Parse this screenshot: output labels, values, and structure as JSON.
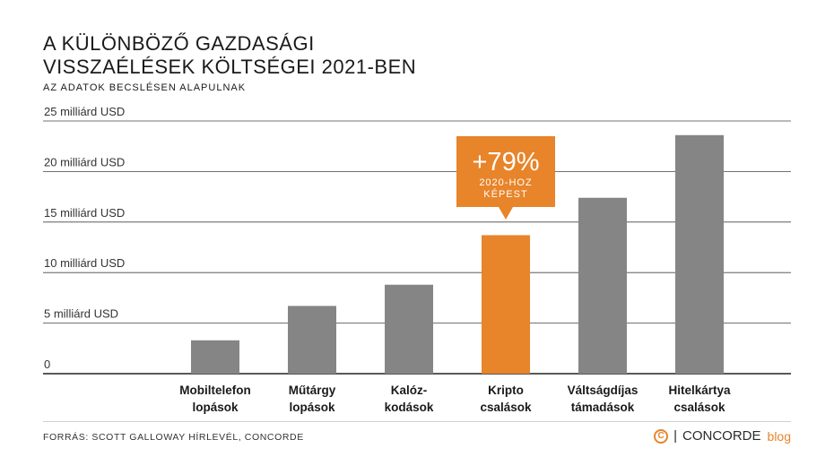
{
  "title_lines": [
    "A KÜLÖNBÖZŐ GAZDASÁGI",
    "VISSZAÉLÉSEK KÖLTSÉGEI 2021-BEN"
  ],
  "subtitle": "AZ ADATOK BECSLÉSEN ALAPULNAK",
  "source": "FORRÁS: SCOTT GALLOWAY HÍRLEVÉL, CONCORDE",
  "logo": {
    "name": "CONCORDE",
    "suffix": "blog",
    "mark": "C"
  },
  "colors": {
    "bar": "#858585",
    "highlight": "#e8842a",
    "grid": "#222222",
    "text": "#1a1a1a"
  },
  "chart_data": {
    "type": "bar",
    "title": "A KÜLÖNBÖZŐ GAZDASÁGI VISSZAÉLÉSEK KÖLTSÉGEI 2021-BEN",
    "subtitle": "AZ ADATOK BECSLÉSEN ALAPULNAK",
    "categories": [
      [
        "Mobiltelefon",
        "lopások"
      ],
      [
        "Műtárgy",
        "lopások"
      ],
      [
        "Kalóz-",
        "kodások"
      ],
      [
        "Kripto",
        "csalások"
      ],
      [
        "Váltságdíjas",
        "támadások"
      ],
      [
        "Hitelkártya",
        "csalások"
      ]
    ],
    "values": [
      3.3,
      6.7,
      8.8,
      13.7,
      17.4,
      23.6
    ],
    "unit": "milliárd USD",
    "highlight_index": 3,
    "ylim": [
      0,
      25
    ],
    "yticks": [
      {
        "value": 0,
        "label": "0"
      },
      {
        "value": 5,
        "label": "5 milliárd USD"
      },
      {
        "value": 10,
        "label": "10 milliárd USD"
      },
      {
        "value": 15,
        "label": "15 milliárd USD"
      },
      {
        "value": 20,
        "label": "20 milliárd USD"
      },
      {
        "value": 25,
        "label": "25 milliárd USD"
      }
    ],
    "grid": true,
    "annotation": {
      "index": 3,
      "big": "+79%",
      "small": [
        "2020-HOZ",
        "KÉPEST"
      ]
    }
  }
}
